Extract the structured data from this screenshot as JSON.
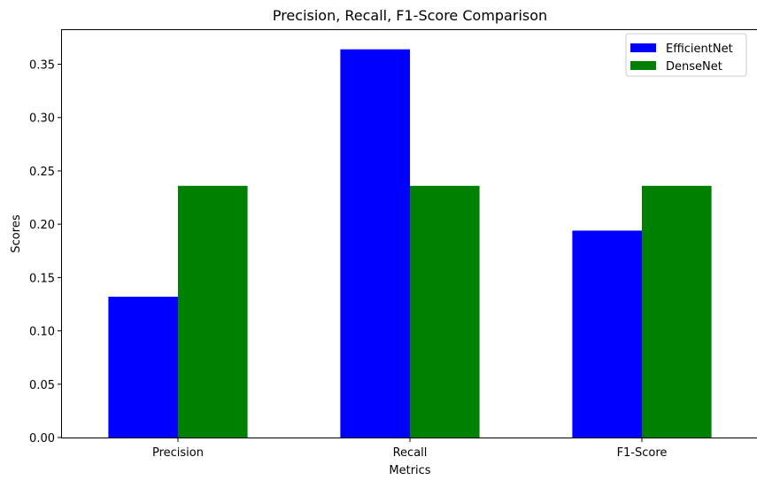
{
  "chart_data": {
    "type": "bar",
    "title": "Precision, Recall, F1-Score Comparison",
    "xlabel": "Metrics",
    "ylabel": "Scores",
    "categories": [
      "Precision",
      "Recall",
      "F1-Score"
    ],
    "series": [
      {
        "name": "EfficientNet",
        "color": "#0000ff",
        "values": [
          0.132,
          0.364,
          0.194
        ]
      },
      {
        "name": "DenseNet",
        "color": "#008000",
        "values": [
          0.236,
          0.236,
          0.236
        ]
      }
    ],
    "ylim": [
      0,
      0.382
    ],
    "yticks": [
      "0.00",
      "0.05",
      "0.10",
      "0.15",
      "0.20",
      "0.25",
      "0.30",
      "0.35"
    ],
    "grid": false,
    "legend": "top-right"
  }
}
